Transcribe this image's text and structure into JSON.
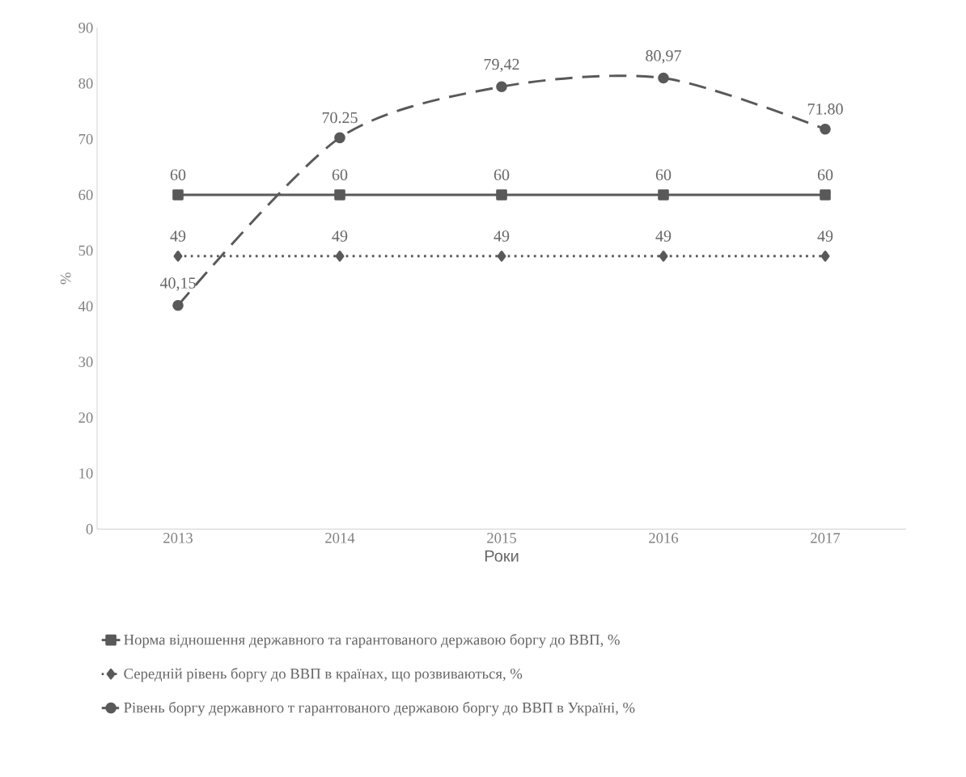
{
  "chart_data": {
    "type": "line",
    "xlabel": "Роки",
    "ylabel": "%",
    "categories": [
      "2013",
      "2014",
      "2015",
      "2016",
      "2017"
    ],
    "ylim": [
      0,
      90
    ],
    "yticks": [
      0,
      10,
      20,
      30,
      40,
      50,
      60,
      70,
      80,
      90
    ],
    "grid": false,
    "legend": "bottom",
    "series": [
      {
        "name": "Норма відношення державного та гарантованого державою боргу до ВВП, %",
        "color": "#595959",
        "marker": "square",
        "line_style": "solid",
        "values": [
          60,
          60,
          60,
          60,
          60
        ],
        "value_labels": [
          "60",
          "60",
          "60",
          "60",
          "60"
        ]
      },
      {
        "name": "Середній рівень боргу до ВВП в країнах, що розвиваються, %",
        "color": "#595959",
        "marker": "diamond",
        "line_style": "dotted",
        "values": [
          49,
          49,
          49,
          49,
          49
        ],
        "value_labels": [
          "49",
          "49",
          "49",
          "49",
          "49"
        ]
      },
      {
        "name": "Рівень боргу державного т гарантованого державою боргу до ВВП в Україні, %",
        "color": "#595959",
        "marker": "circle",
        "line_style": "dashed",
        "values": [
          40.15,
          70.25,
          79.42,
          80.97,
          71.8
        ],
        "value_labels": [
          "40,15",
          "70.25",
          "79,42",
          "80,97",
          "71.80"
        ]
      }
    ]
  }
}
